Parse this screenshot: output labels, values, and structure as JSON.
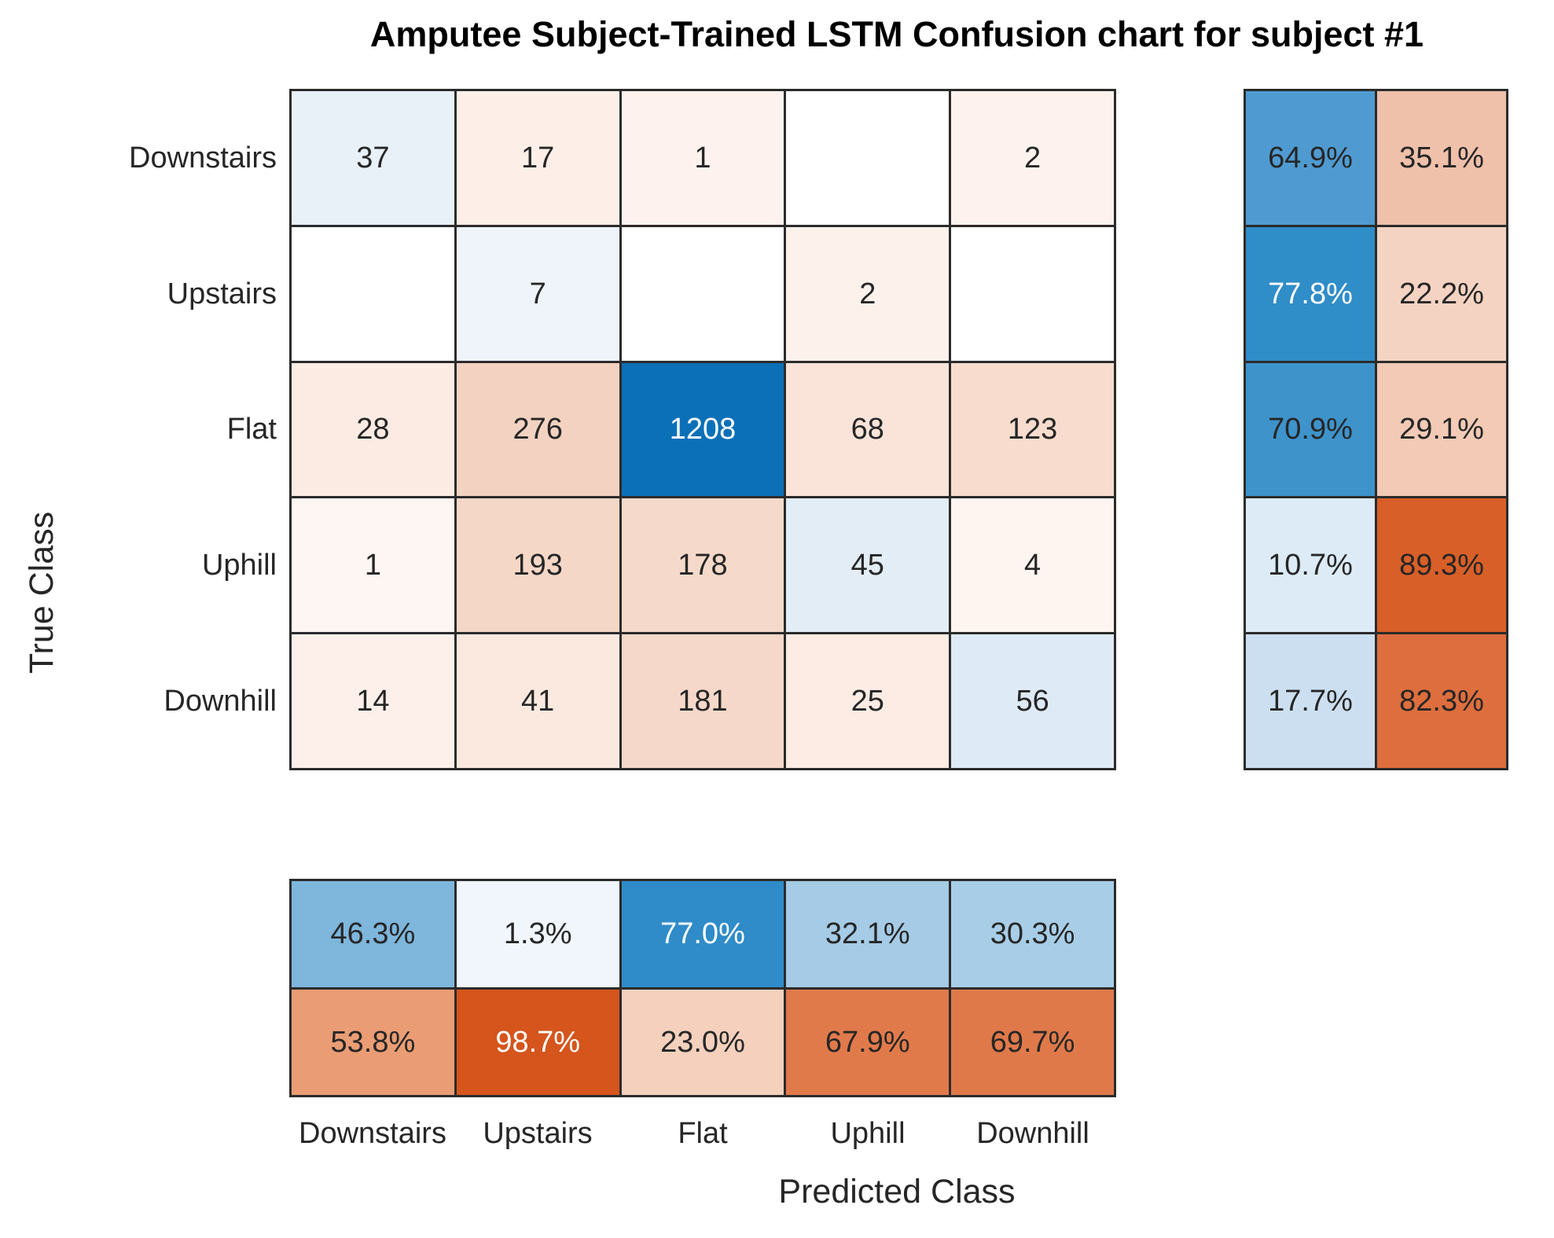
{
  "chart_data": {
    "type": "heatmap",
    "title": "Amputee Subject-Trained LSTM Confusion chart for subject #1",
    "xlabel": "Predicted Class",
    "ylabel": "True Class",
    "classes": [
      "Downstairs",
      "Upstairs",
      "Flat",
      "Uphill",
      "Downhill"
    ],
    "matrix": [
      [
        37,
        17,
        1,
        null,
        2
      ],
      [
        null,
        7,
        null,
        2,
        null
      ],
      [
        28,
        276,
        1208,
        68,
        123
      ],
      [
        1,
        193,
        178,
        45,
        4
      ],
      [
        14,
        41,
        181,
        25,
        56
      ]
    ],
    "row_summary_pct": [
      [
        "64.9%",
        "35.1%"
      ],
      [
        "77.8%",
        "22.2%"
      ],
      [
        "70.9%",
        "29.1%"
      ],
      [
        "10.7%",
        "89.3%"
      ],
      [
        "17.7%",
        "82.3%"
      ]
    ],
    "col_summary_pct": [
      [
        "46.3%",
        "1.3%",
        "77.0%",
        "32.1%",
        "30.3%"
      ],
      [
        "53.8%",
        "98.7%",
        "23.0%",
        "67.9%",
        "69.7%"
      ]
    ],
    "legend_position": "none",
    "grid": "on"
  },
  "colors": {
    "grid_line": "#2b2b2b",
    "text_dark": "#262626",
    "text_light": "#ffffff",
    "diagonal_base": "#0072bd",
    "offdiagonal_base": "#d95319",
    "matrix_bg": [
      [
        "#e8f0f8",
        "#fdefe8",
        "#fdf2ed",
        "#ffffff",
        "#fdf2ed"
      ],
      [
        "#ffffff",
        "#eef4fa",
        "#ffffff",
        "#fdf1ec",
        "#ffffff"
      ],
      [
        "#fcebe2",
        "#f3d2c1",
        "#0b70b7",
        "#fae4d9",
        "#f8dccd"
      ],
      [
        "#fef6f2",
        "#f5d7c7",
        "#f5d9ca",
        "#e3edf6",
        "#fef4f0"
      ],
      [
        "#fdf0ea",
        "#fbe9e0",
        "#f5d8c9",
        "#fcece4",
        "#deeaf5"
      ]
    ],
    "matrix_fg": [
      [
        "#262626",
        "#262626",
        "#262626",
        "#262626",
        "#262626"
      ],
      [
        "#262626",
        "#262626",
        "#262626",
        "#262626",
        "#262626"
      ],
      [
        "#262626",
        "#262626",
        "#ffffff",
        "#262626",
        "#262626"
      ],
      [
        "#262626",
        "#262626",
        "#262626",
        "#262626",
        "#262626"
      ],
      [
        "#262626",
        "#262626",
        "#262626",
        "#262626",
        "#262626"
      ]
    ],
    "row_summary_bg": [
      [
        "#4f9bd1",
        "#efc0aa"
      ],
      [
        "#2f8dc8",
        "#f5d3c2"
      ],
      [
        "#3e93cb",
        "#f2cab6"
      ],
      [
        "#dcebf5",
        "#d95f28"
      ],
      [
        "#cbdff0",
        "#de6e3d"
      ]
    ],
    "row_summary_fg": [
      [
        "#262626",
        "#262626"
      ],
      [
        "#ffffff",
        "#262626"
      ],
      [
        "#262626",
        "#262626"
      ],
      [
        "#262626",
        "#262626"
      ],
      [
        "#262626",
        "#262626"
      ]
    ],
    "col_summary_bg": [
      [
        "#7eb6dc",
        "#f0f6fb",
        "#2f8cc8",
        "#a5cbe6",
        "#a8cde7"
      ],
      [
        "#ea9d74",
        "#d5551d",
        "#f4d0bd",
        "#e17a4b",
        "#e0794a"
      ]
    ],
    "col_summary_fg": [
      [
        "#262626",
        "#262626",
        "#ffffff",
        "#262626",
        "#262626"
      ],
      [
        "#262626",
        "#ffffff",
        "#262626",
        "#262626",
        "#262626"
      ]
    ]
  }
}
